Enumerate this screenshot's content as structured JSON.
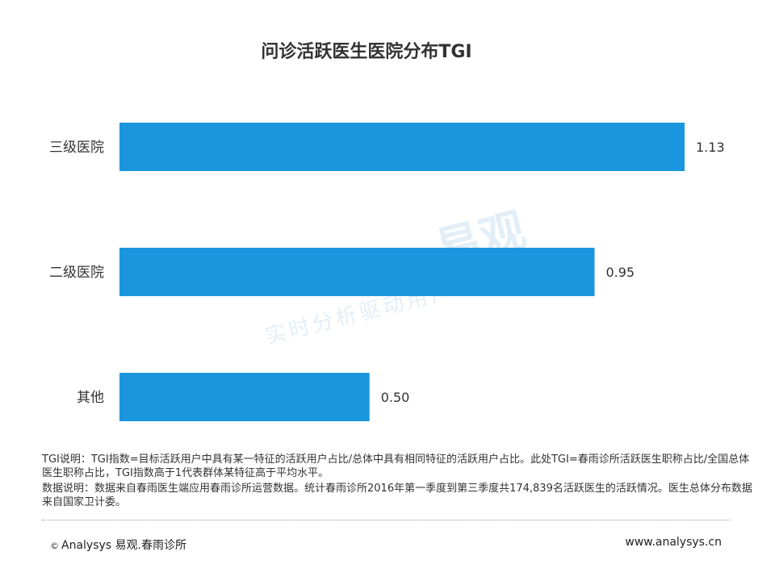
{
  "chart_data": {
    "type": "bar",
    "orientation": "horizontal",
    "title": "问诊活跃医生医院分布TGI",
    "categories": [
      "三级医院",
      "二级医院",
      "其他"
    ],
    "values": [
      1.13,
      0.95,
      0.5
    ],
    "value_labels": [
      "1.13",
      "0.95",
      "0.50"
    ],
    "xlim": [
      0,
      1.13
    ],
    "bar_color": "#1a96df",
    "grid": false,
    "legend": "none"
  },
  "watermark": {
    "logo_text": "易观",
    "tagline": "实时分析驱动用户"
  },
  "notes": {
    "tgi": "TGI说明：TGI指数=目标活跃用户中具有某一特征的活跃用户占比/总体中具有相同特征的活跃用户占比。此处TGI=春雨诊所活跃医生职称占比/全国总体医生职称占比，TGI指数高于1代表群体某特征高于平均水平。",
    "data": "数据说明：数据来自春雨医生端应用春雨诊所运营数据。统计春雨诊所2016年第一季度到第三季度共174,839名活跃医生的活跃情况。医生总体分布数据来自国家卫计委。"
  },
  "footer": {
    "copyright_symbol": "©",
    "brand": "Analysys 易观.春雨诊所",
    "url": "www.analysys.cn"
  }
}
